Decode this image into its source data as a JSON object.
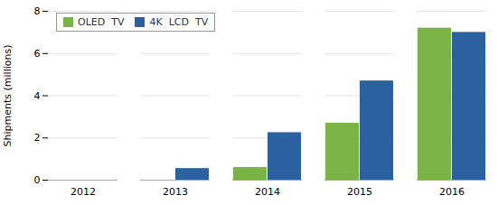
{
  "chart_data": {
    "type": "bar",
    "categories": [
      "2012",
      "2013",
      "2014",
      "2015",
      "2016"
    ],
    "series": [
      {
        "name": "OLED  TV",
        "color": "#7ab446",
        "values": [
          0,
          0,
          0.6,
          2.7,
          7.2
        ]
      },
      {
        "name": "4K  LCD  TV",
        "color": "#2b619e",
        "values": [
          0,
          0.55,
          2.25,
          4.7,
          7.0
        ]
      }
    ],
    "ylabel": "Shipments (millions)",
    "ylim": [
      0,
      8
    ],
    "yticks": [
      0,
      2,
      4,
      6,
      8
    ],
    "grid": true,
    "legend": "upper left"
  }
}
